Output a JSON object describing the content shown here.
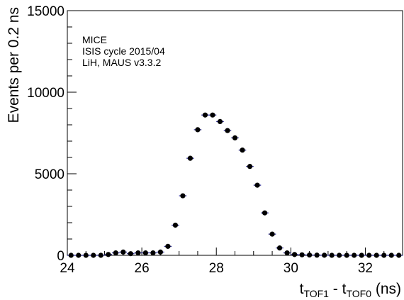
{
  "chart_data": {
    "type": "scatter",
    "annotations": [
      "MICE",
      "ISIS cycle 2015/04",
      "LiH, MAUS v3.3.2"
    ],
    "ylabel": "Events per 0.2 ns",
    "xlabel": {
      "base1": "t",
      "sub1": "TOF1",
      "mid": " - t",
      "sub2": "TOF0",
      "tail": " (ns)"
    },
    "xlim": [
      24,
      33
    ],
    "ylim": [
      0,
      15000
    ],
    "x_ticks": [
      24,
      26,
      28,
      30,
      32
    ],
    "y_ticks": [
      0,
      5000,
      10000,
      15000
    ],
    "grid": false,
    "bin_width": 0.2,
    "series": [
      {
        "x": [
          24.1,
          24.3,
          24.5,
          24.7,
          24.9,
          25.1,
          25.3,
          25.5,
          25.7,
          25.9,
          26.1,
          26.3,
          26.5,
          26.7,
          26.9,
          27.1,
          27.3,
          27.5,
          27.7,
          27.9,
          28.1,
          28.3,
          28.5,
          28.7,
          28.9,
          29.1,
          29.3,
          29.5,
          29.7,
          29.9,
          30.1,
          30.3,
          30.5,
          30.7,
          30.9,
          31.1,
          31.3,
          31.5,
          31.7,
          31.9,
          32.1,
          32.3,
          32.5,
          32.7,
          32.9
        ],
        "y": [
          0,
          0,
          0,
          0,
          0,
          50,
          150,
          200,
          100,
          150,
          150,
          150,
          200,
          550,
          1850,
          3650,
          5950,
          7700,
          8600,
          8600,
          8200,
          7650,
          7200,
          6450,
          5450,
          4300,
          2600,
          1300,
          450,
          150,
          50,
          30,
          20,
          10,
          5,
          0,
          0,
          0,
          0,
          0,
          0,
          0,
          0,
          0,
          0
        ],
        "color": "#000000",
        "error_bar_color": "#1f1f8f"
      }
    ]
  }
}
